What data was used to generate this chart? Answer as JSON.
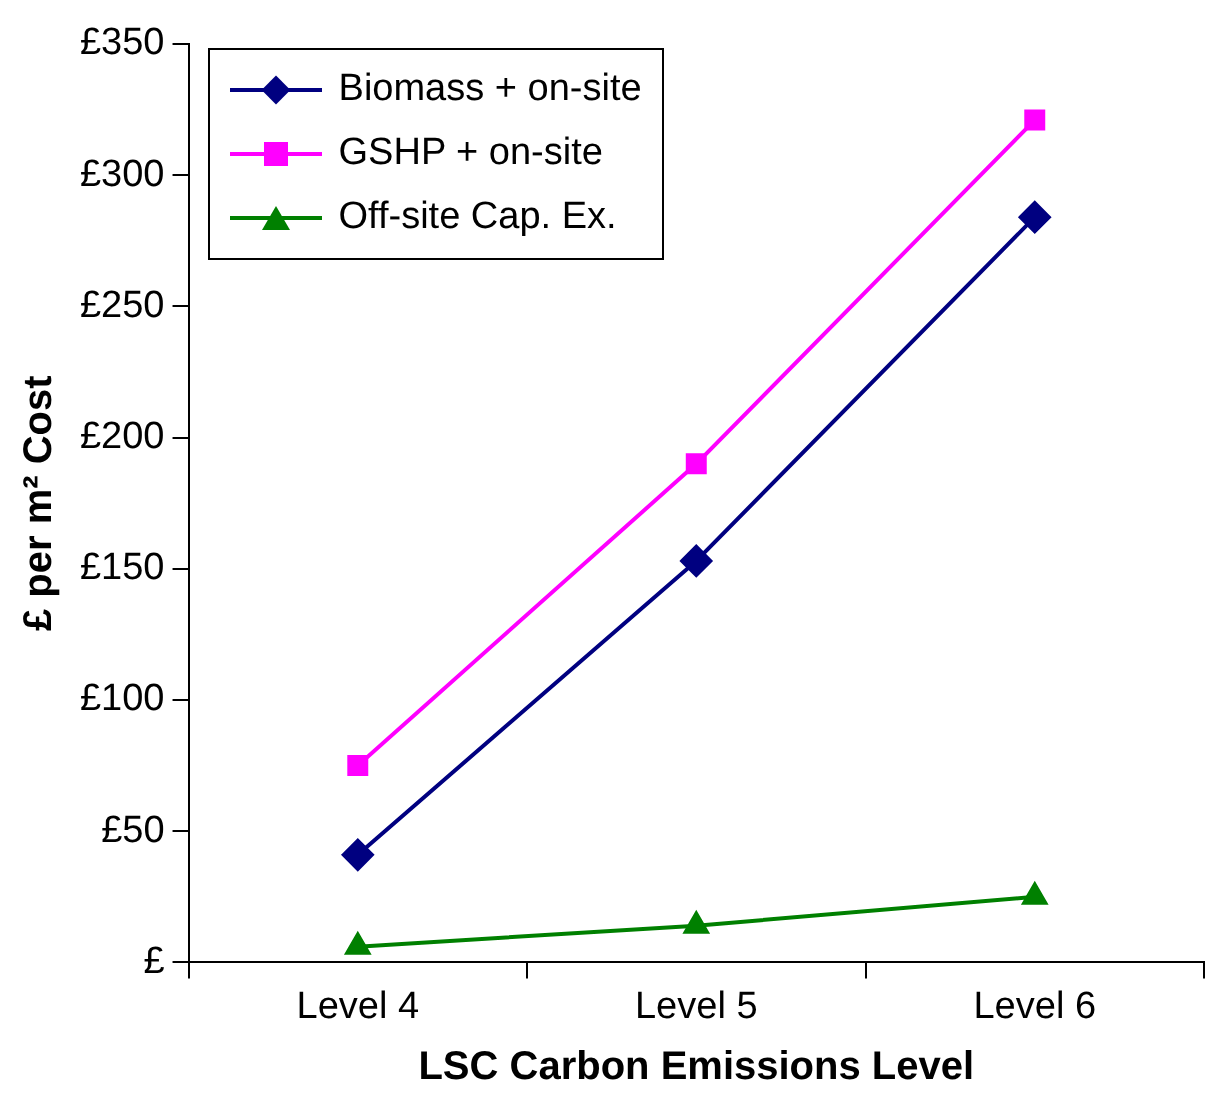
{
  "chart_data": {
    "type": "line",
    "xlabel": "LSC Carbon Emissions Level",
    "ylabel": "£ per m² Cost",
    "categories": [
      "Level 4",
      "Level 5",
      "Level 6"
    ],
    "series": [
      {
        "name": "Biomass + on-site",
        "color": "#000080",
        "values": [
          41,
          153,
          284
        ],
        "marker": "diamond"
      },
      {
        "name": "GSHP + on-site",
        "color": "#ff00ff",
        "values": [
          75,
          190,
          321
        ],
        "marker": "square"
      },
      {
        "name": "Off-site Cap. Ex.",
        "color": "#008000",
        "values": [
          6,
          14,
          25
        ],
        "marker": "triangle"
      }
    ],
    "ylim": [
      0,
      350
    ],
    "yticks": [
      {
        "value": 0,
        "label": "£"
      },
      {
        "value": 50,
        "label": "£50"
      },
      {
        "value": 100,
        "label": "£100"
      },
      {
        "value": 150,
        "label": "£150"
      },
      {
        "value": 200,
        "label": "£200"
      },
      {
        "value": 250,
        "label": "£250"
      },
      {
        "value": 300,
        "label": "£300"
      },
      {
        "value": 350,
        "label": "£350"
      }
    ],
    "grid": false,
    "legend": "top left"
  }
}
